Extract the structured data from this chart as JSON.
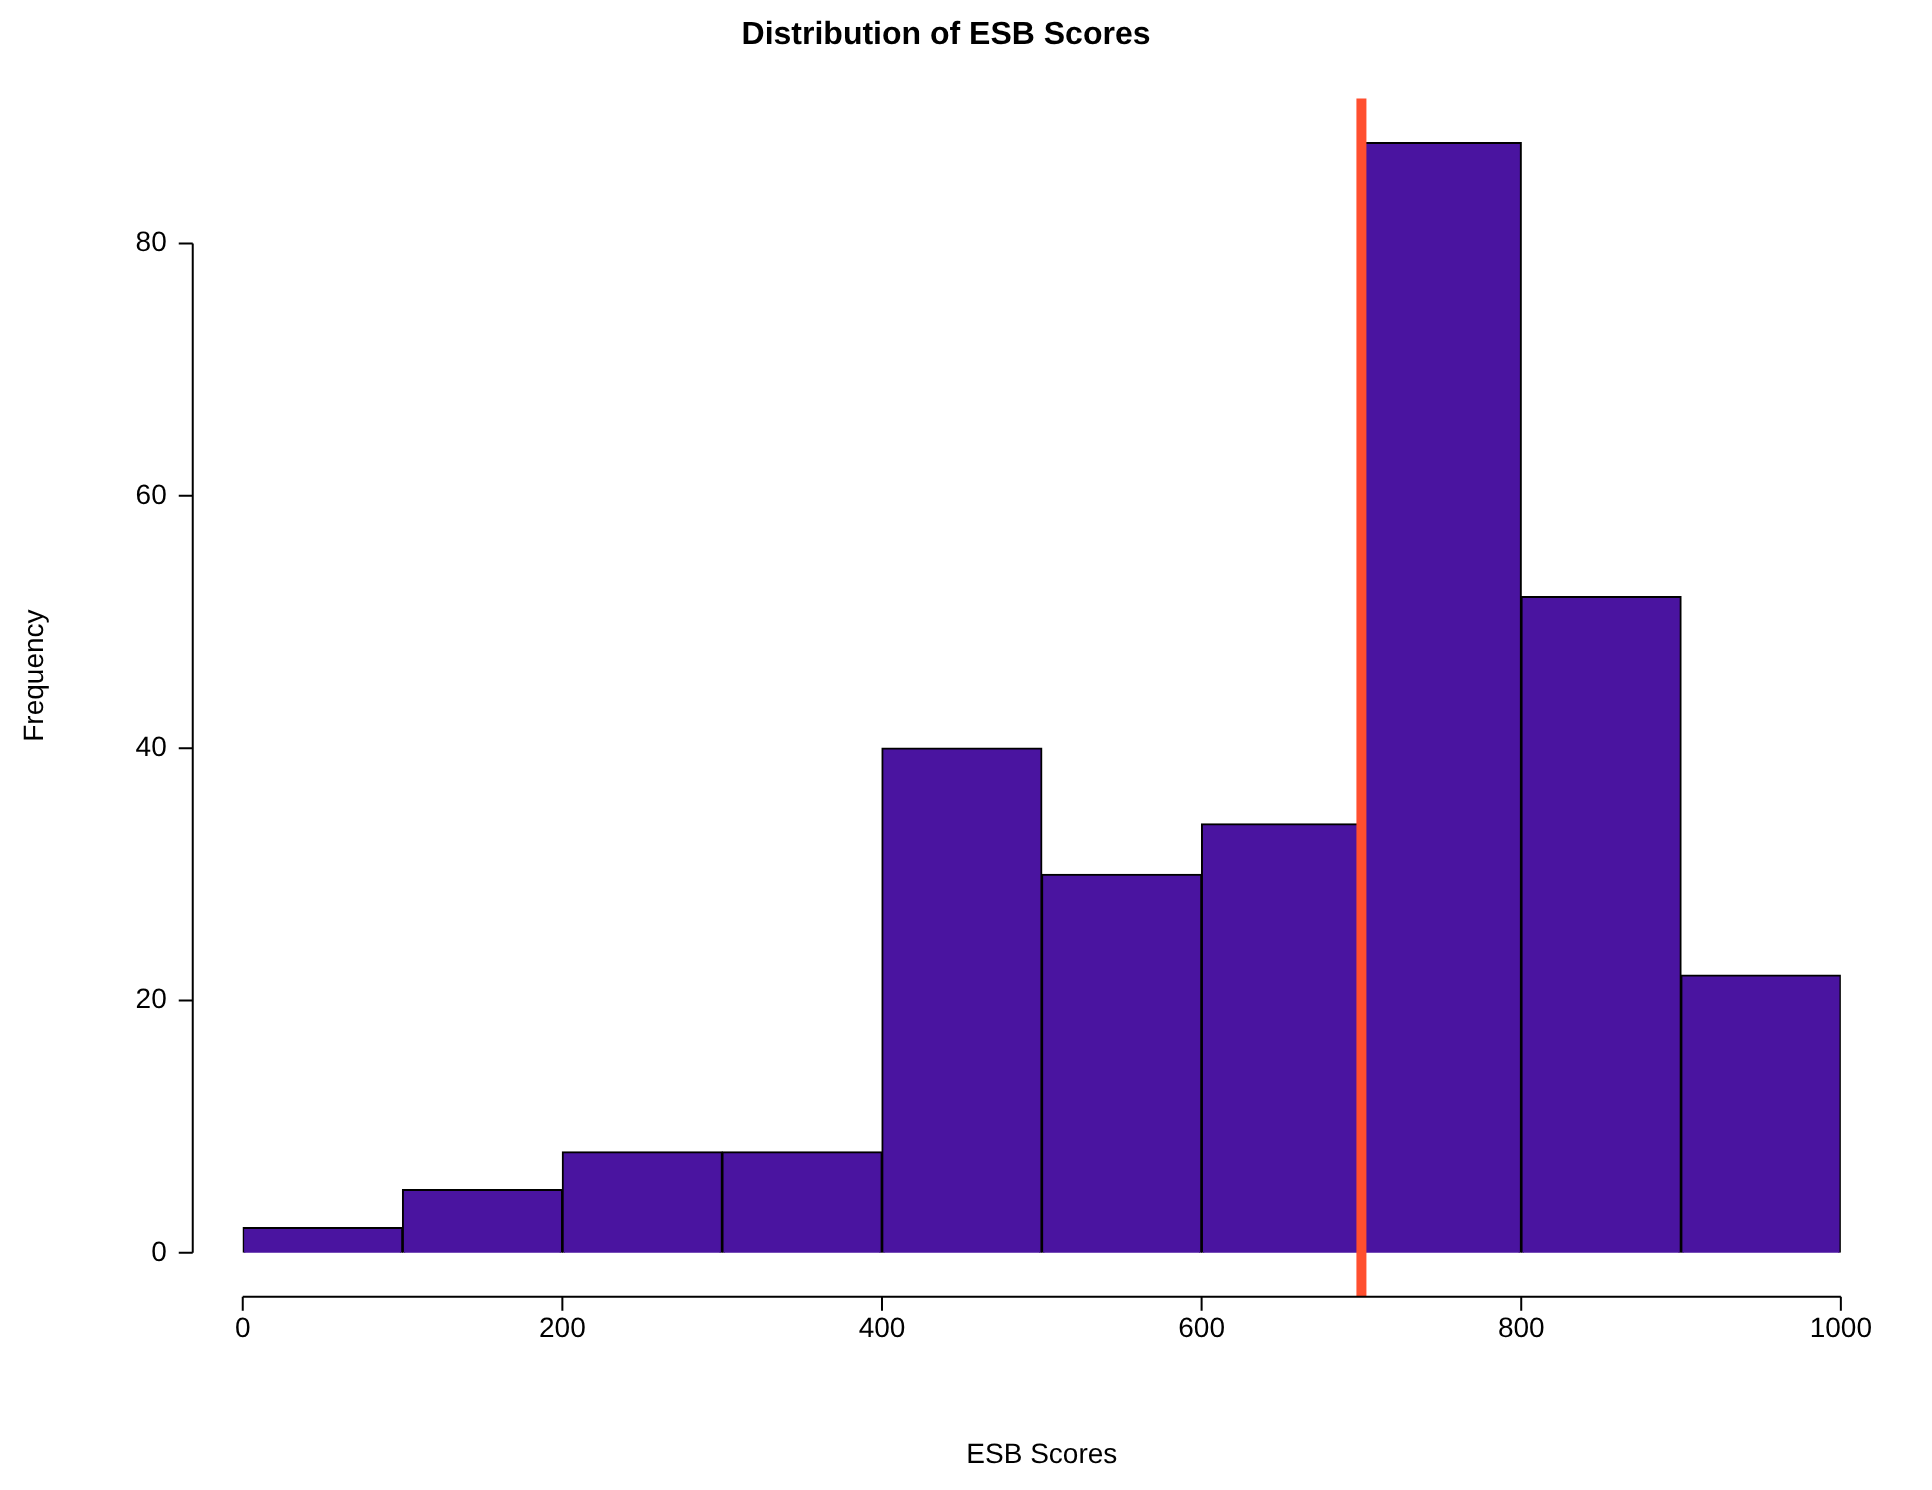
{
  "chart_data": {
    "type": "histogram",
    "title": "Distribution of ESB Scores",
    "xlabel": "ESB Scores",
    "ylabel": "Frequency",
    "bins": [
      0,
      100,
      200,
      300,
      400,
      500,
      600,
      700,
      800,
      900,
      1000
    ],
    "values": [
      2,
      5,
      8,
      8,
      40,
      30,
      34,
      88,
      52,
      22
    ],
    "color": "#4a14a0",
    "xlim": [
      0,
      1000
    ],
    "xticks": [
      0,
      200,
      400,
      600,
      800,
      1000
    ],
    "ylim": [
      0,
      91.5
    ],
    "yticks": [
      0,
      20,
      40,
      60,
      80
    ],
    "ref_lines": [
      {
        "axis": "x",
        "value": 700,
        "color": "#ff4f2f"
      }
    ],
    "grid": false,
    "legend": false
  }
}
